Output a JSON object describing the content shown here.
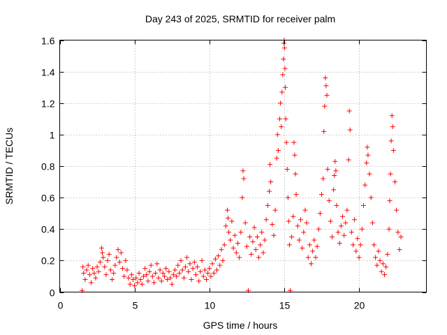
{
  "chart_data": {
    "type": "scatter",
    "title": "Day 243 of 2025, SRMTID for receiver palm",
    "xlabel": "GPS time / hours",
    "ylabel": "SRMTID / TECUs",
    "xlim": [
      0,
      24.5
    ],
    "ylim": [
      0,
      1.6
    ],
    "xticks": [
      0,
      5,
      10,
      15,
      20
    ],
    "xtick_labels": [
      "0",
      "5",
      "10",
      "15",
      "20"
    ],
    "yticks": [
      0,
      0.2,
      0.4,
      0.6,
      0.8,
      1,
      1.2,
      1.4,
      1.6
    ],
    "ytick_labels": [
      "0",
      "0.2",
      "0.4",
      "0.6",
      "0.8",
      "1",
      "1.2",
      "1.4",
      "1.6"
    ],
    "grid": true,
    "marker": "+",
    "color": "#ff0000",
    "series": [
      {
        "name": "palm",
        "points": [
          [
            1.5,
            0.01
          ],
          [
            1.55,
            0.16
          ],
          [
            1.6,
            0.12
          ],
          [
            1.7,
            0.08
          ],
          [
            1.8,
            0.14
          ],
          [
            1.9,
            0.17
          ],
          [
            2.0,
            0.11
          ],
          [
            2.1,
            0.06
          ],
          [
            2.2,
            0.15
          ],
          [
            2.3,
            0.12
          ],
          [
            2.4,
            0.09
          ],
          [
            2.5,
            0.16
          ],
          [
            2.6,
            0.13
          ],
          [
            2.7,
            0.19
          ],
          [
            2.8,
            0.28
          ],
          [
            2.85,
            0.25
          ],
          [
            2.9,
            0.22
          ],
          [
            3.0,
            0.16
          ],
          [
            3.1,
            0.11
          ],
          [
            3.2,
            0.2
          ],
          [
            3.3,
            0.24
          ],
          [
            3.4,
            0.14
          ],
          [
            3.5,
            0.08
          ],
          [
            3.6,
            0.12
          ],
          [
            3.7,
            0.17
          ],
          [
            3.8,
            0.22
          ],
          [
            3.9,
            0.27
          ],
          [
            4.0,
            0.19
          ],
          [
            4.1,
            0.25
          ],
          [
            4.2,
            0.15
          ],
          [
            4.3,
            0.1
          ],
          [
            4.4,
            0.2
          ],
          [
            4.5,
            0.14
          ],
          [
            4.6,
            0.09
          ],
          [
            4.7,
            0.05
          ],
          [
            4.8,
            0.11
          ],
          [
            4.9,
            0.08
          ],
          [
            5.0,
            0.04
          ],
          [
            5.1,
            0.09
          ],
          [
            5.2,
            0.06
          ],
          [
            5.3,
            0.12
          ],
          [
            5.4,
            0.08
          ],
          [
            5.5,
            0.05
          ],
          [
            5.6,
            0.1
          ],
          [
            5.7,
            0.15
          ],
          [
            5.8,
            0.11
          ],
          [
            5.9,
            0.07
          ],
          [
            6.0,
            0.13
          ],
          [
            6.1,
            0.17
          ],
          [
            6.2,
            0.1
          ],
          [
            6.3,
            0.06
          ],
          [
            6.4,
            0.12
          ],
          [
            6.5,
            0.18
          ],
          [
            6.6,
            0.09
          ],
          [
            6.7,
            0.14
          ],
          [
            6.8,
            0.07
          ],
          [
            6.9,
            0.12
          ],
          [
            7.0,
            0.1
          ],
          [
            7.1,
            0.15
          ],
          [
            7.2,
            0.08
          ],
          [
            7.3,
            0.13
          ],
          [
            7.4,
            0.09
          ],
          [
            7.5,
            0.05
          ],
          [
            7.6,
            0.11
          ],
          [
            7.7,
            0.14
          ],
          [
            7.8,
            0.1
          ],
          [
            7.9,
            0.17
          ],
          [
            8.0,
            0.12
          ],
          [
            8.1,
            0.2
          ],
          [
            8.2,
            0.14
          ],
          [
            8.3,
            0.09
          ],
          [
            8.4,
            0.16
          ],
          [
            8.5,
            0.22
          ],
          [
            8.6,
            0.13
          ],
          [
            8.7,
            0.18
          ],
          [
            8.8,
            0.08
          ],
          [
            8.9,
            0.15
          ],
          [
            9.0,
            0.19
          ],
          [
            9.1,
            0.11
          ],
          [
            9.2,
            0.16
          ],
          [
            9.3,
            0.07
          ],
          [
            9.4,
            0.13
          ],
          [
            9.5,
            0.2
          ],
          [
            9.6,
            0.1
          ],
          [
            9.7,
            0.14
          ],
          [
            9.8,
            0.08
          ],
          [
            9.9,
            0.12
          ],
          [
            10.0,
            0.15
          ],
          [
            10.1,
            0.1
          ],
          [
            10.2,
            0.18
          ],
          [
            10.3,
            0.12
          ],
          [
            10.4,
            0.21
          ],
          [
            10.5,
            0.14
          ],
          [
            10.6,
            0.23
          ],
          [
            10.7,
            0.17
          ],
          [
            10.8,
            0.27
          ],
          [
            10.9,
            0.2
          ],
          [
            11.0,
            0.3
          ],
          [
            11.1,
            0.42
          ],
          [
            11.2,
            0.52
          ],
          [
            11.25,
            0.47
          ],
          [
            11.3,
            0.38
          ],
          [
            11.4,
            0.33
          ],
          [
            11.5,
            0.45
          ],
          [
            11.6,
            0.28
          ],
          [
            11.7,
            0.36
          ],
          [
            11.8,
            0.25
          ],
          [
            11.9,
            0.31
          ],
          [
            12.0,
            0.22
          ],
          [
            12.1,
            0.38
          ],
          [
            12.2,
            0.6
          ],
          [
            12.25,
            0.77
          ],
          [
            12.3,
            0.72
          ],
          [
            12.4,
            0.44
          ],
          [
            12.5,
            0.29
          ],
          [
            12.6,
            0.01
          ],
          [
            12.7,
            0.35
          ],
          [
            12.8,
            0.24
          ],
          [
            12.9,
            0.32
          ],
          [
            13.0,
            0.41
          ],
          [
            13.1,
            0.27
          ],
          [
            13.2,
            0.35
          ],
          [
            13.3,
            0.22
          ],
          [
            13.4,
            0.3
          ],
          [
            13.5,
            0.38
          ],
          [
            13.6,
            0.25
          ],
          [
            13.7,
            0.33
          ],
          [
            13.8,
            0.46
          ],
          [
            13.9,
            0.55
          ],
          [
            14.0,
            0.64
          ],
          [
            14.05,
            0.81
          ],
          [
            14.1,
            0.7
          ],
          [
            14.2,
            0.43
          ],
          [
            14.3,
            0.36
          ],
          [
            14.4,
            0.52
          ],
          [
            14.5,
            0.85
          ],
          [
            14.55,
            1.0
          ],
          [
            14.6,
            0.9
          ],
          [
            14.7,
            1.1
          ],
          [
            14.75,
            1.2
          ],
          [
            14.8,
            1.05
          ],
          [
            14.85,
            1.27
          ],
          [
            14.9,
            1.38
          ],
          [
            14.95,
            1.48
          ],
          [
            14.97,
            1.58
          ],
          [
            15.0,
            1.6
          ],
          [
            15.02,
            1.55
          ],
          [
            15.05,
            1.42
          ],
          [
            15.07,
            1.3
          ],
          [
            15.1,
            1.1
          ],
          [
            15.15,
            0.95
          ],
          [
            15.2,
            0.78
          ],
          [
            15.25,
            0.6
          ],
          [
            15.3,
            0.45
          ],
          [
            15.35,
            0.3
          ],
          [
            15.4,
            0.01
          ],
          [
            15.5,
            0.35
          ],
          [
            15.6,
            0.48
          ],
          [
            15.65,
            0.95
          ],
          [
            15.7,
            0.87
          ],
          [
            15.75,
            0.75
          ],
          [
            15.8,
            0.62
          ],
          [
            15.9,
            0.42
          ],
          [
            16.0,
            0.33
          ],
          [
            16.1,
            0.46
          ],
          [
            16.2,
            0.28
          ],
          [
            16.3,
            0.38
          ],
          [
            16.4,
            0.52
          ],
          [
            16.5,
            0.44
          ],
          [
            16.6,
            0.22
          ],
          [
            16.7,
            0.3
          ],
          [
            16.8,
            0.18
          ],
          [
            16.9,
            0.26
          ],
          [
            17.0,
            0.33
          ],
          [
            17.1,
            0.22
          ],
          [
            17.2,
            0.29
          ],
          [
            17.3,
            0.4
          ],
          [
            17.4,
            0.5
          ],
          [
            17.5,
            0.62
          ],
          [
            17.6,
            0.72
          ],
          [
            17.65,
            1.02
          ],
          [
            17.7,
            1.18
          ],
          [
            17.75,
            1.36
          ],
          [
            17.8,
            1.31
          ],
          [
            17.85,
            1.25
          ],
          [
            17.9,
            0.78
          ],
          [
            18.0,
            0.58
          ],
          [
            18.1,
            0.45
          ],
          [
            18.2,
            0.35
          ],
          [
            18.3,
            0.65
          ],
          [
            18.35,
            0.74
          ],
          [
            18.4,
            0.83
          ],
          [
            18.45,
            0.77
          ],
          [
            18.5,
            0.55
          ],
          [
            18.6,
            0.38
          ],
          [
            18.7,
            0.31
          ],
          [
            18.8,
            0.42
          ],
          [
            18.9,
            0.48
          ],
          [
            19.0,
            0.36
          ],
          [
            19.1,
            0.44
          ],
          [
            19.2,
            0.52
          ],
          [
            19.3,
            0.84
          ],
          [
            19.35,
            1.15
          ],
          [
            19.4,
            1.03
          ],
          [
            19.5,
            0.38
          ],
          [
            19.6,
            0.3
          ],
          [
            19.7,
            0.46
          ],
          [
            19.8,
            0.26
          ],
          [
            19.9,
            0.34
          ],
          [
            20.0,
            0.22
          ],
          [
            20.1,
            0.3
          ],
          [
            20.2,
            0.4
          ],
          [
            20.3,
            0.55
          ],
          [
            20.4,
            0.68
          ],
          [
            20.5,
            0.82
          ],
          [
            20.55,
            0.92
          ],
          [
            20.6,
            0.87
          ],
          [
            20.7,
            0.75
          ],
          [
            20.8,
            0.6
          ],
          [
            20.9,
            0.44
          ],
          [
            21.0,
            0.3
          ],
          [
            21.1,
            0.22
          ],
          [
            21.2,
            0.17
          ],
          [
            21.3,
            0.26
          ],
          [
            21.4,
            0.2
          ],
          [
            21.5,
            0.13
          ],
          [
            21.6,
            0.18
          ],
          [
            21.7,
            0.11
          ],
          [
            21.8,
            0.16
          ],
          [
            21.9,
            0.24
          ],
          [
            22.0,
            0.4
          ],
          [
            22.05,
            0.58
          ],
          [
            22.1,
            0.75
          ],
          [
            22.15,
            0.96
          ],
          [
            22.2,
            1.12
          ],
          [
            22.25,
            1.05
          ],
          [
            22.3,
            0.9
          ],
          [
            22.4,
            0.7
          ],
          [
            22.5,
            0.52
          ],
          [
            22.6,
            0.38
          ],
          [
            22.7,
            0.27
          ],
          [
            22.8,
            0.35
          ]
        ]
      }
    ]
  }
}
